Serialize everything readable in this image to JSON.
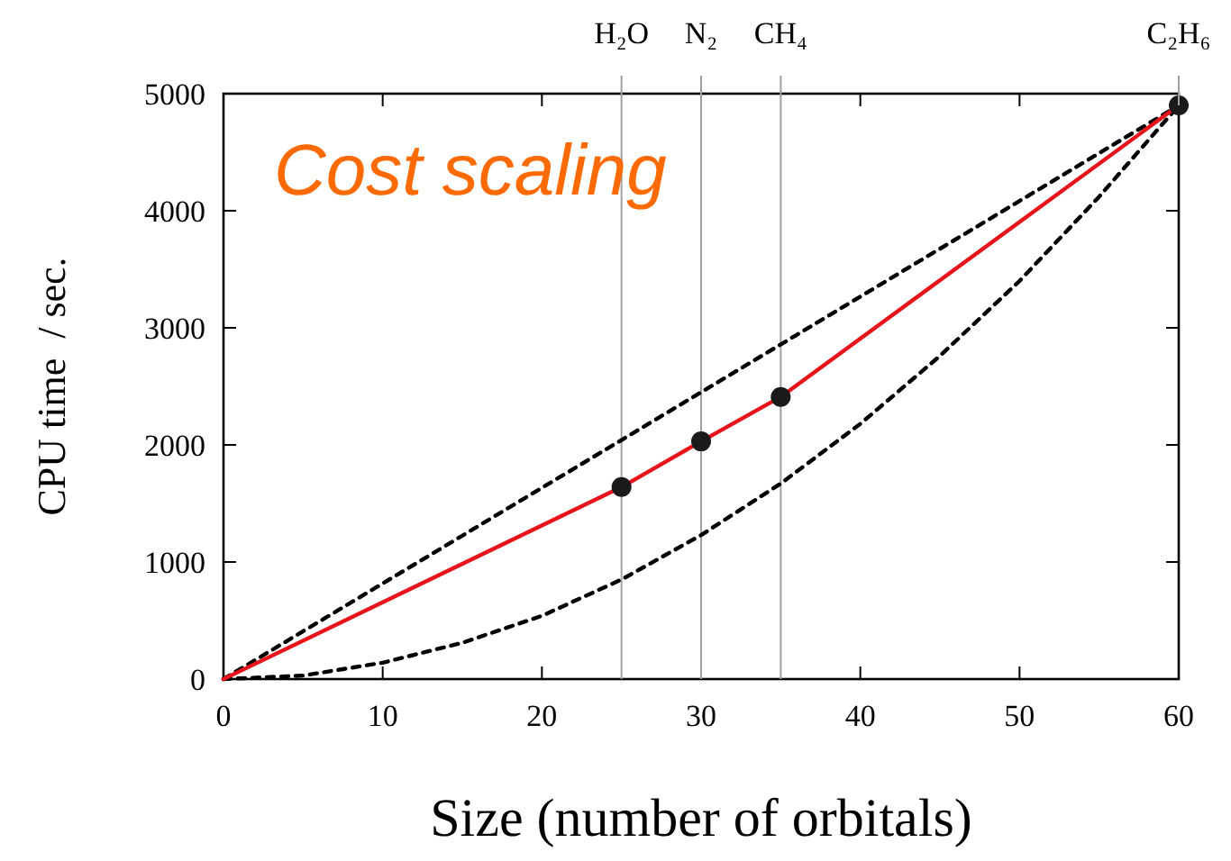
{
  "chart_data": {
    "type": "line",
    "xlabel": "Size (number of orbitals)",
    "ylabel": "CPU time  / sec.",
    "xlim": [
      0,
      60
    ],
    "ylim": [
      0,
      5000
    ],
    "xticks": [
      0,
      10,
      20,
      30,
      40,
      50,
      60
    ],
    "yticks": [
      0,
      1000,
      2000,
      3000,
      4000,
      5000
    ],
    "grid": false,
    "series": [
      {
        "color": "#000000",
        "line_style": "dashed",
        "marker": "none",
        "x": [
          0,
          60
        ],
        "values": [
          0,
          4900
        ]
      },
      {
        "color": "#000000",
        "line_style": "dashed",
        "marker": "none",
        "x": [
          0,
          5,
          10,
          15,
          20,
          25,
          30,
          35,
          40,
          45,
          50,
          55,
          60
        ],
        "values": [
          0,
          30,
          140,
          310,
          540,
          850,
          1230,
          1670,
          2180,
          2760,
          3400,
          4120,
          4900
        ]
      },
      {
        "color": "#e8141c",
        "line_style": "solid",
        "marker": "none",
        "x": [
          0,
          25,
          30,
          35,
          60
        ],
        "values": [
          0,
          1640,
          2030,
          2410,
          4900
        ]
      },
      {
        "type": "scatter",
        "color": "#1a1a1a",
        "marker": "circle",
        "x": [
          25,
          30,
          35,
          60
        ],
        "values": [
          1640,
          2030,
          2410,
          4900
        ]
      }
    ],
    "ref_lines": [
      {
        "axis": "x",
        "value": 25,
        "label": "H₂O",
        "color": "#a0a0a0"
      },
      {
        "axis": "x",
        "value": 30,
        "label": "N₂",
        "color": "#a0a0a0"
      },
      {
        "axis": "x",
        "value": 35,
        "label": "CH₄",
        "color": "#a0a0a0"
      }
    ],
    "annotations": [
      "Cost scaling",
      {
        "text": "C₂H₆",
        "x": 60,
        "y": 4900
      }
    ]
  }
}
